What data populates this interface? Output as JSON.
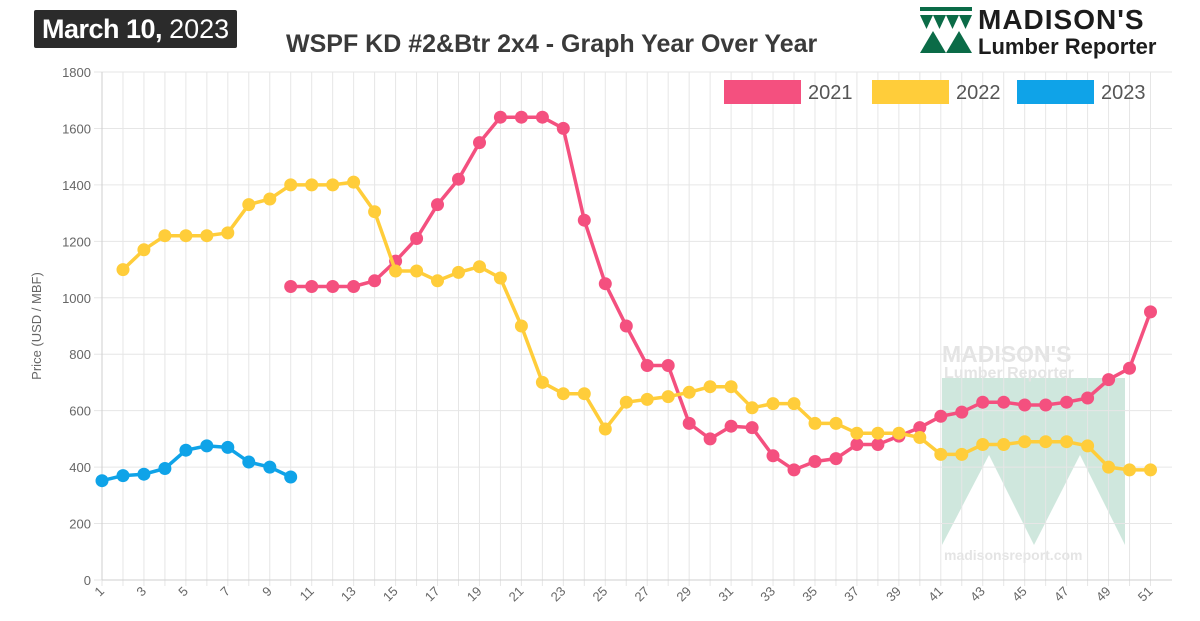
{
  "header": {
    "date_month_day": "March 10,",
    "date_year": "2023",
    "title": "WSPF KD #2&Btr 2x4 - Graph Year Over Year"
  },
  "logo": {
    "name": "MADISON'S",
    "sub": "Lumber Reporter"
  },
  "watermark": {
    "name": "MADISON'S",
    "sub": "Lumber Reporter",
    "url": "madisonsreport.com"
  },
  "chart_data": {
    "type": "line",
    "ylabel": "Price (USD / MBF)",
    "xlabel": "",
    "ylim": [
      0,
      1800
    ],
    "yticks": [
      0,
      200,
      400,
      600,
      800,
      1000,
      1200,
      1400,
      1600,
      1800
    ],
    "xlim": [
      1,
      52
    ],
    "xticks": [
      1,
      3,
      5,
      7,
      9,
      11,
      13,
      15,
      17,
      19,
      21,
      23,
      25,
      27,
      29,
      31,
      33,
      35,
      37,
      39,
      41,
      43,
      45,
      47,
      49,
      51
    ],
    "grid": true,
    "legend_position": "top-right",
    "series": [
      {
        "name": "2021",
        "color": "#f4507f",
        "x": [
          10,
          11,
          12,
          13,
          14,
          15,
          16,
          17,
          18,
          19,
          20,
          21,
          22,
          23,
          24,
          25,
          26,
          27,
          28,
          29,
          30,
          31,
          32,
          33,
          34,
          35,
          36,
          37,
          38,
          39,
          40,
          41,
          42,
          43,
          44,
          45,
          46,
          47,
          48,
          49,
          50,
          51
        ],
        "values": [
          1040,
          1040,
          1040,
          1040,
          1060,
          1130,
          1210,
          1330,
          1420,
          1550,
          1640,
          1640,
          1640,
          1600,
          1275,
          1050,
          900,
          760,
          760,
          555,
          500,
          545,
          540,
          440,
          390,
          420,
          430,
          480,
          480,
          510,
          540,
          580,
          595,
          630,
          630,
          620,
          620,
          630,
          645,
          710,
          750,
          950
        ]
      },
      {
        "name": "2022",
        "color": "#ffcd3a",
        "x": [
          2,
          3,
          4,
          5,
          6,
          7,
          8,
          9,
          10,
          11,
          12,
          13,
          14,
          15,
          16,
          17,
          18,
          19,
          20,
          21,
          22,
          23,
          24,
          25,
          26,
          27,
          28,
          29,
          30,
          31,
          32,
          33,
          34,
          35,
          36,
          37,
          38,
          39,
          40,
          41,
          42,
          43,
          44,
          45,
          46,
          47,
          48,
          49,
          50,
          51
        ],
        "values": [
          1100,
          1170,
          1220,
          1220,
          1220,
          1230,
          1330,
          1350,
          1400,
          1400,
          1400,
          1410,
          1305,
          1095,
          1095,
          1060,
          1090,
          1110,
          1070,
          900,
          700,
          660,
          660,
          535,
          630,
          640,
          650,
          665,
          685,
          685,
          610,
          625,
          625,
          555,
          555,
          520,
          520,
          520,
          505,
          445,
          445,
          480,
          480,
          490,
          490,
          490,
          475,
          400,
          390,
          390
        ]
      },
      {
        "name": "2023",
        "color": "#0fa3e8",
        "x": [
          1,
          2,
          3,
          4,
          5,
          6,
          7,
          8,
          9,
          10
        ],
        "values": [
          352,
          370,
          375,
          395,
          460,
          475,
          470,
          418,
          400,
          365
        ]
      }
    ]
  }
}
